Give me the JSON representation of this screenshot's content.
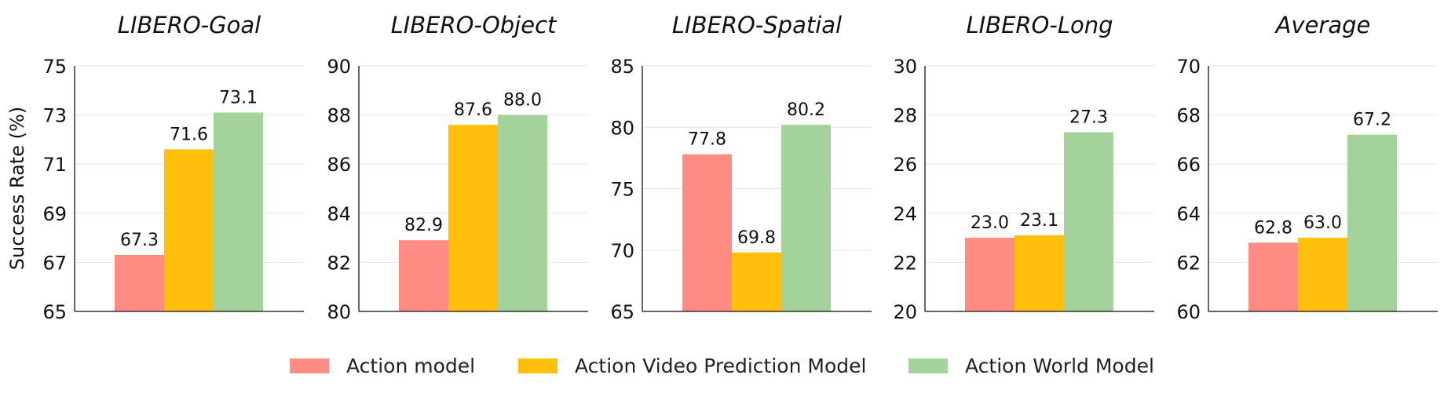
{
  "ylabel": "Success Rate (%)",
  "legend": [
    {
      "label": "Action model",
      "color": "#ff8c82"
    },
    {
      "label": "Action Video Prediction Model",
      "color": "#ffbf0a"
    },
    {
      "label": "Action World Model",
      "color": "#a3d39a"
    }
  ],
  "chart_data": [
    {
      "type": "bar",
      "title": "LIBERO-Goal",
      "ylim": [
        65,
        75
      ],
      "yticks": [
        65,
        67,
        69,
        71,
        73,
        75
      ],
      "grid": true,
      "series": [
        {
          "name": "Action model",
          "values": [
            67.3
          ]
        },
        {
          "name": "Action Video Prediction Model",
          "values": [
            71.6
          ]
        },
        {
          "name": "Action World Model",
          "values": [
            73.1
          ]
        }
      ]
    },
    {
      "type": "bar",
      "title": "LIBERO-Object",
      "ylim": [
        80,
        90
      ],
      "yticks": [
        80,
        82,
        84,
        86,
        88,
        90
      ],
      "grid": true,
      "series": [
        {
          "name": "Action model",
          "values": [
            82.9
          ]
        },
        {
          "name": "Action Video Prediction Model",
          "values": [
            87.6
          ]
        },
        {
          "name": "Action World Model",
          "values": [
            88.0
          ]
        }
      ]
    },
    {
      "type": "bar",
      "title": "LIBERO-Spatial",
      "ylim": [
        65,
        85
      ],
      "yticks": [
        65,
        70,
        75,
        80,
        85
      ],
      "grid": true,
      "series": [
        {
          "name": "Action model",
          "values": [
            77.8
          ]
        },
        {
          "name": "Action Video Prediction Model",
          "values": [
            69.8
          ]
        },
        {
          "name": "Action World Model",
          "values": [
            80.2
          ]
        }
      ]
    },
    {
      "type": "bar",
      "title": "LIBERO-Long",
      "ylim": [
        20,
        30
      ],
      "yticks": [
        20,
        22,
        24,
        26,
        28,
        30
      ],
      "grid": true,
      "series": [
        {
          "name": "Action model",
          "values": [
            23.0
          ]
        },
        {
          "name": "Action Video Prediction Model",
          "values": [
            23.1
          ]
        },
        {
          "name": "Action World Model",
          "values": [
            27.3
          ]
        }
      ]
    },
    {
      "type": "bar",
      "title": "Average",
      "ylim": [
        60,
        70
      ],
      "yticks": [
        60,
        62,
        64,
        66,
        68,
        70
      ],
      "grid": true,
      "series": [
        {
          "name": "Action model",
          "values": [
            62.8
          ]
        },
        {
          "name": "Action Video Prediction Model",
          "values": [
            63.0
          ]
        },
        {
          "name": "Action World Model",
          "values": [
            67.2
          ]
        }
      ]
    }
  ]
}
